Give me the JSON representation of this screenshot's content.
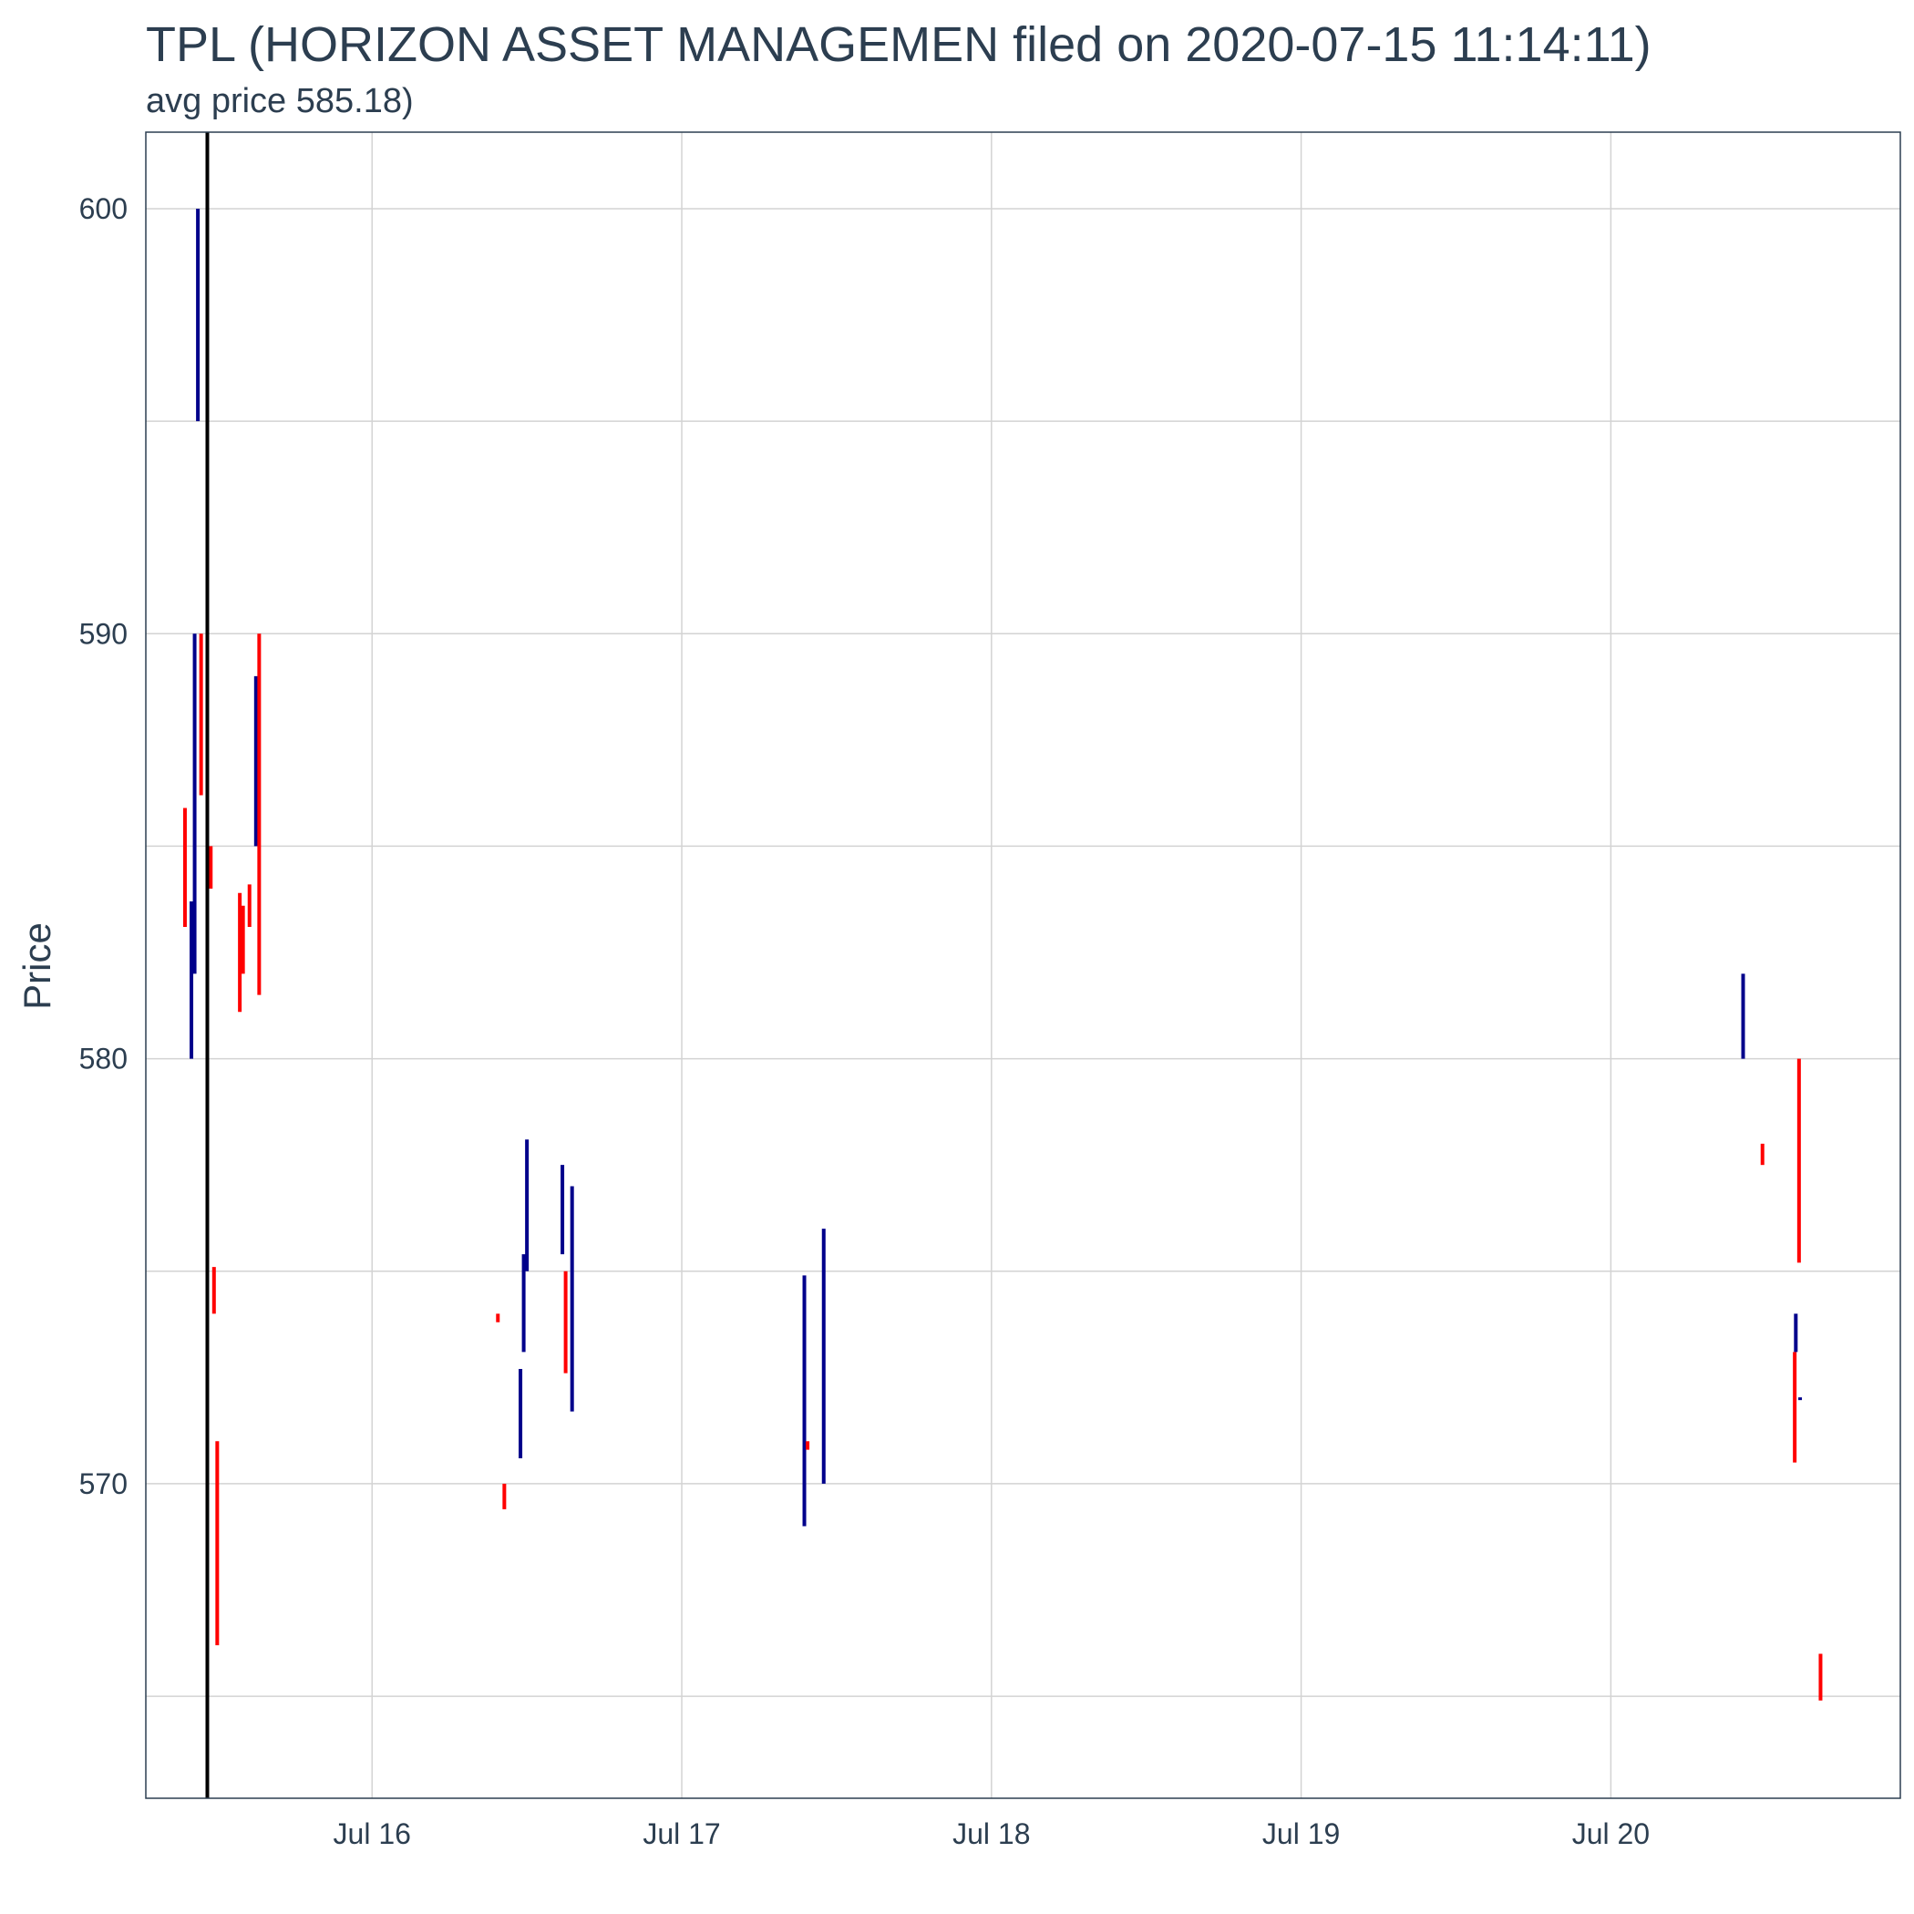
{
  "title": "TPL (HORIZON ASSET MANAGEMEN filed on 2020-07-15 11:14:11)",
  "subtitle": "avg price 585.18)",
  "colors": {
    "up": "#00008b",
    "down": "#ff0000",
    "filed_line": "#000000",
    "grid": "#d3d3d3",
    "text": "#2c3e50"
  },
  "chart_data": {
    "type": "candlestick",
    "title": "TPL (HORIZON ASSET MANAGEMEN filed on 2020-07-15 11:14:11)",
    "subtitle": "avg price 585.18)",
    "xlabel": "",
    "ylabel": "Price",
    "xlim": [
      "2020-07-15 06:28",
      "2020-07-20 22:26"
    ],
    "ylim": [
      562.6,
      601.8
    ],
    "x_ticks": [
      {
        "date": "2020-07-16",
        "label": "Jul 16"
      },
      {
        "date": "2020-07-17",
        "label": "Jul 17"
      },
      {
        "date": "2020-07-18",
        "label": "Jul 18"
      },
      {
        "date": "2020-07-19",
        "label": "Jul 19"
      },
      {
        "date": "2020-07-20",
        "label": "Jul 20"
      }
    ],
    "y_ticks": [
      570,
      580,
      590,
      600
    ],
    "grid": true,
    "filed_at": "2020-07-15 11:14",
    "bars": [
      {
        "t": "2020-07-15 09:30",
        "low": 583.1,
        "high": 585.9,
        "dir": "down"
      },
      {
        "t": "2020-07-15 10:00",
        "low": 580.0,
        "high": 583.7,
        "dir": "up"
      },
      {
        "t": "2020-07-15 10:15",
        "low": 582.0,
        "high": 590.0,
        "dir": "up"
      },
      {
        "t": "2020-07-15 10:30",
        "low": 595.0,
        "high": 600.0,
        "dir": "up"
      },
      {
        "t": "2020-07-15 10:45",
        "low": 586.2,
        "high": 590.0,
        "dir": "down"
      },
      {
        "t": "2020-07-15 11:30",
        "low": 584.0,
        "high": 585.0,
        "dir": "down"
      },
      {
        "t": "2020-07-15 11:45",
        "low": 574.0,
        "high": 575.1,
        "dir": "down"
      },
      {
        "t": "2020-07-15 12:00",
        "low": 566.2,
        "high": 571.0,
        "dir": "down"
      },
      {
        "t": "2020-07-15 13:45",
        "low": 581.1,
        "high": 583.9,
        "dir": "down"
      },
      {
        "t": "2020-07-15 14:00",
        "low": 582.0,
        "high": 583.6,
        "dir": "down"
      },
      {
        "t": "2020-07-15 14:30",
        "low": 583.1,
        "high": 584.1,
        "dir": "down"
      },
      {
        "t": "2020-07-15 15:00",
        "low": 585.0,
        "high": 589.0,
        "dir": "up"
      },
      {
        "t": "2020-07-15 15:15",
        "low": 581.5,
        "high": 590.0,
        "dir": "down"
      },
      {
        "t": "2020-07-16 09:45",
        "low": 573.8,
        "high": 574.0,
        "dir": "down"
      },
      {
        "t": "2020-07-16 10:15",
        "low": 569.4,
        "high": 570.0,
        "dir": "down"
      },
      {
        "t": "2020-07-16 11:30",
        "low": 570.6,
        "high": 572.7,
        "dir": "up"
      },
      {
        "t": "2020-07-16 11:45",
        "low": 573.1,
        "high": 575.4,
        "dir": "up"
      },
      {
        "t": "2020-07-16 12:00",
        "low": 575.0,
        "high": 578.1,
        "dir": "up"
      },
      {
        "t": "2020-07-16 14:45",
        "low": 575.4,
        "high": 577.5,
        "dir": "up"
      },
      {
        "t": "2020-07-16 15:00",
        "low": 572.6,
        "high": 575.0,
        "dir": "down"
      },
      {
        "t": "2020-07-16 15:30",
        "low": 571.7,
        "high": 577.0,
        "dir": "up"
      },
      {
        "t": "2020-07-17 09:30",
        "low": 569.0,
        "high": 574.9,
        "dir": "up"
      },
      {
        "t": "2020-07-17 09:45",
        "low": 570.8,
        "high": 571.0,
        "dir": "down"
      },
      {
        "t": "2020-07-17 11:00",
        "low": 570.0,
        "high": 576.0,
        "dir": "up"
      },
      {
        "t": "2020-07-20 10:15",
        "low": 580.0,
        "high": 582.0,
        "dir": "up"
      },
      {
        "t": "2020-07-20 11:45",
        "low": 577.5,
        "high": 578.0,
        "dir": "down"
      },
      {
        "t": "2020-07-20 14:15",
        "low": 570.5,
        "high": 573.1,
        "dir": "down"
      },
      {
        "t": "2020-07-20 14:20",
        "low": 573.1,
        "high": 574.0,
        "dir": "up"
      },
      {
        "t": "2020-07-20 14:35",
        "low": 575.2,
        "high": 580.0,
        "dir": "down"
      },
      {
        "t": "2020-07-20 14:40",
        "low": 572.0,
        "high": 572.0,
        "dir": "up"
      },
      {
        "t": "2020-07-20 16:15",
        "low": 564.9,
        "high": 566.0,
        "dir": "down"
      }
    ]
  }
}
